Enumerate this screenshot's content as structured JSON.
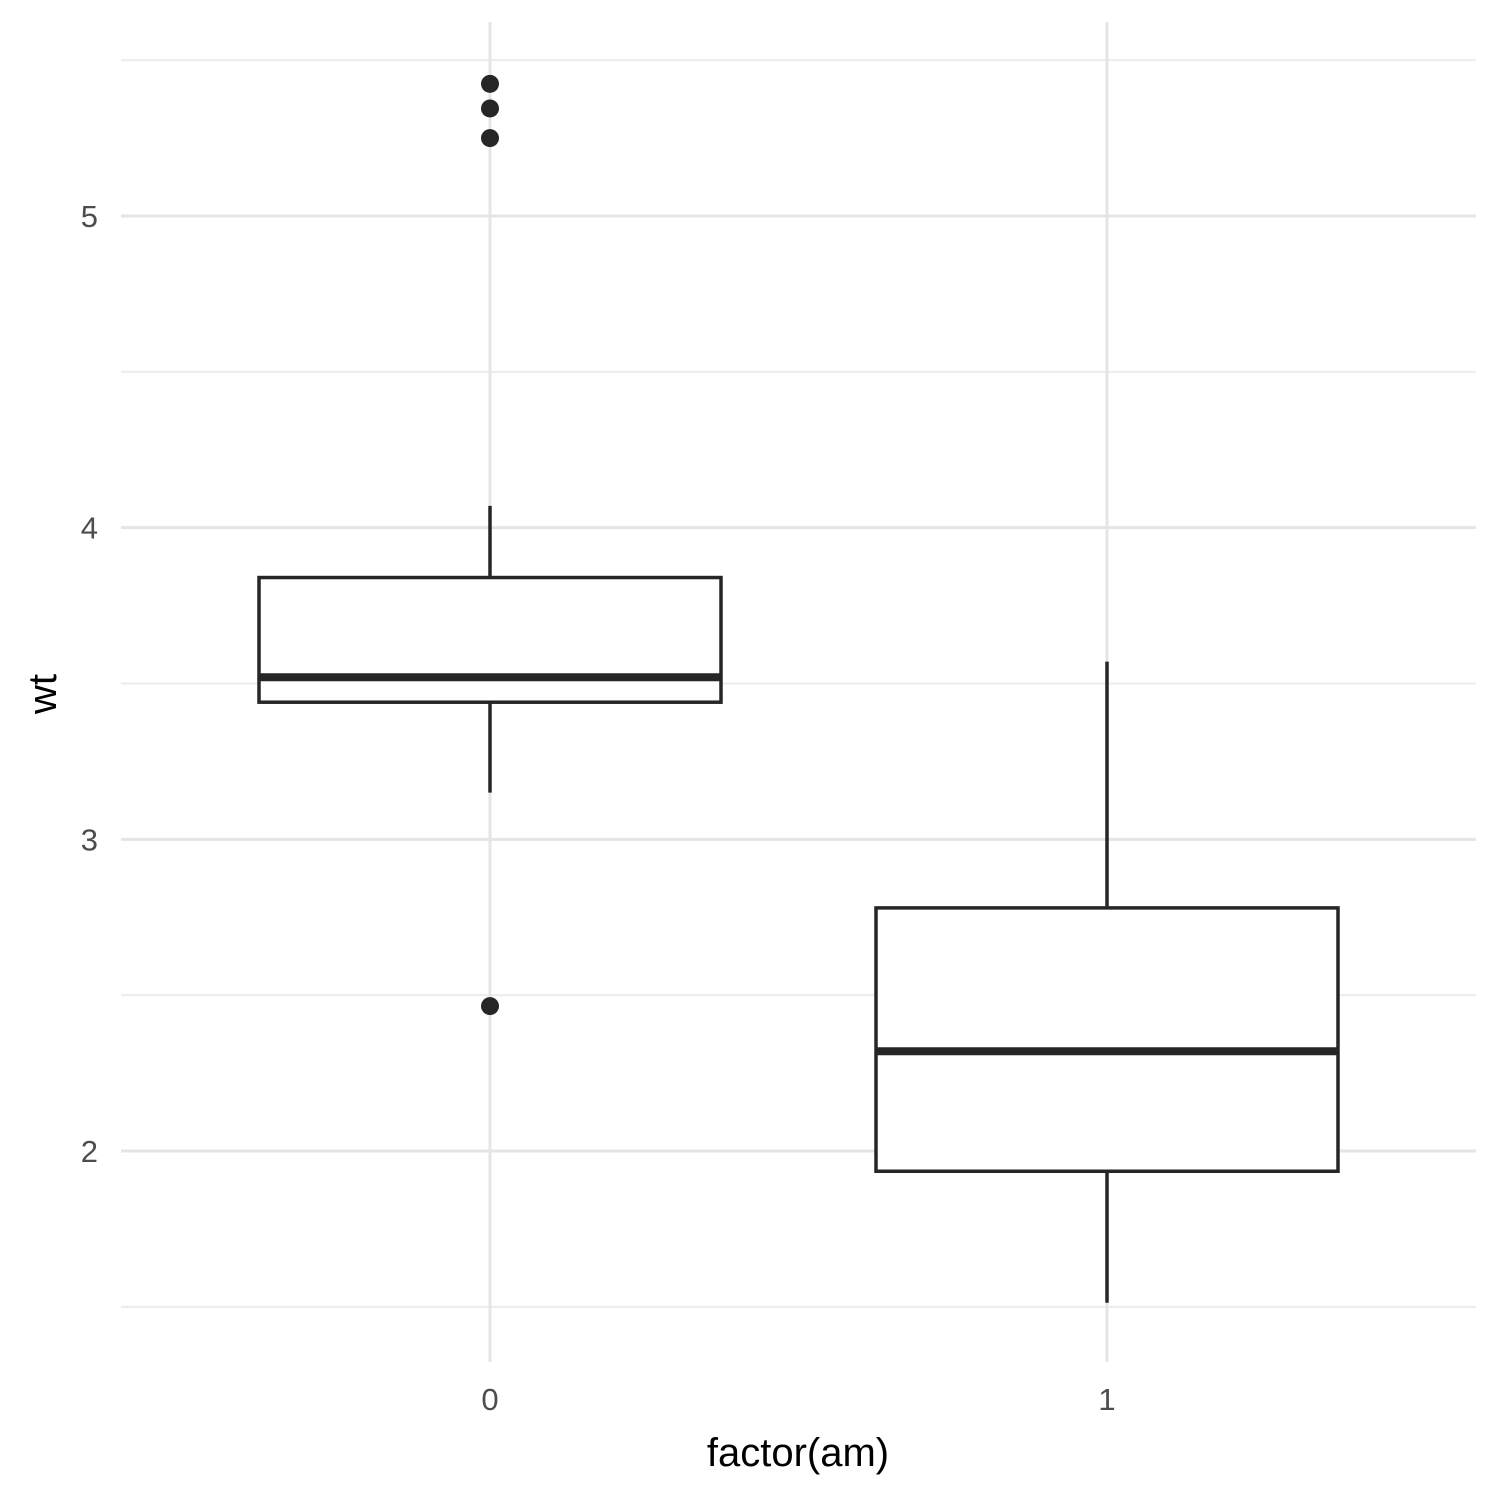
{
  "chart_data": {
    "type": "boxplot",
    "xlabel": "factor(am)",
    "ylabel": "wt",
    "categories": [
      "0",
      "1"
    ],
    "ylim": [
      1.37,
      5.64
    ],
    "y_ticks": [
      2,
      3,
      4,
      5
    ],
    "y_minor_ticks": [
      1.5,
      2.5,
      3.5,
      4.5,
      5.5
    ],
    "grid": true,
    "boxes": [
      {
        "category": "0",
        "whisker_low": 3.15,
        "q1": 3.44,
        "median": 3.52,
        "q3": 3.84,
        "whisker_high": 4.07,
        "outliers": [
          5.25,
          5.345,
          5.424,
          2.465
        ]
      },
      {
        "category": "1",
        "whisker_low": 1.513,
        "q1": 1.935,
        "median": 2.32,
        "q3": 2.78,
        "whisker_high": 3.57,
        "outliers": []
      }
    ],
    "colors": {
      "box_line": "#262626",
      "grid": "#e5e5e5",
      "tick_text": "#4d4d4d"
    }
  }
}
